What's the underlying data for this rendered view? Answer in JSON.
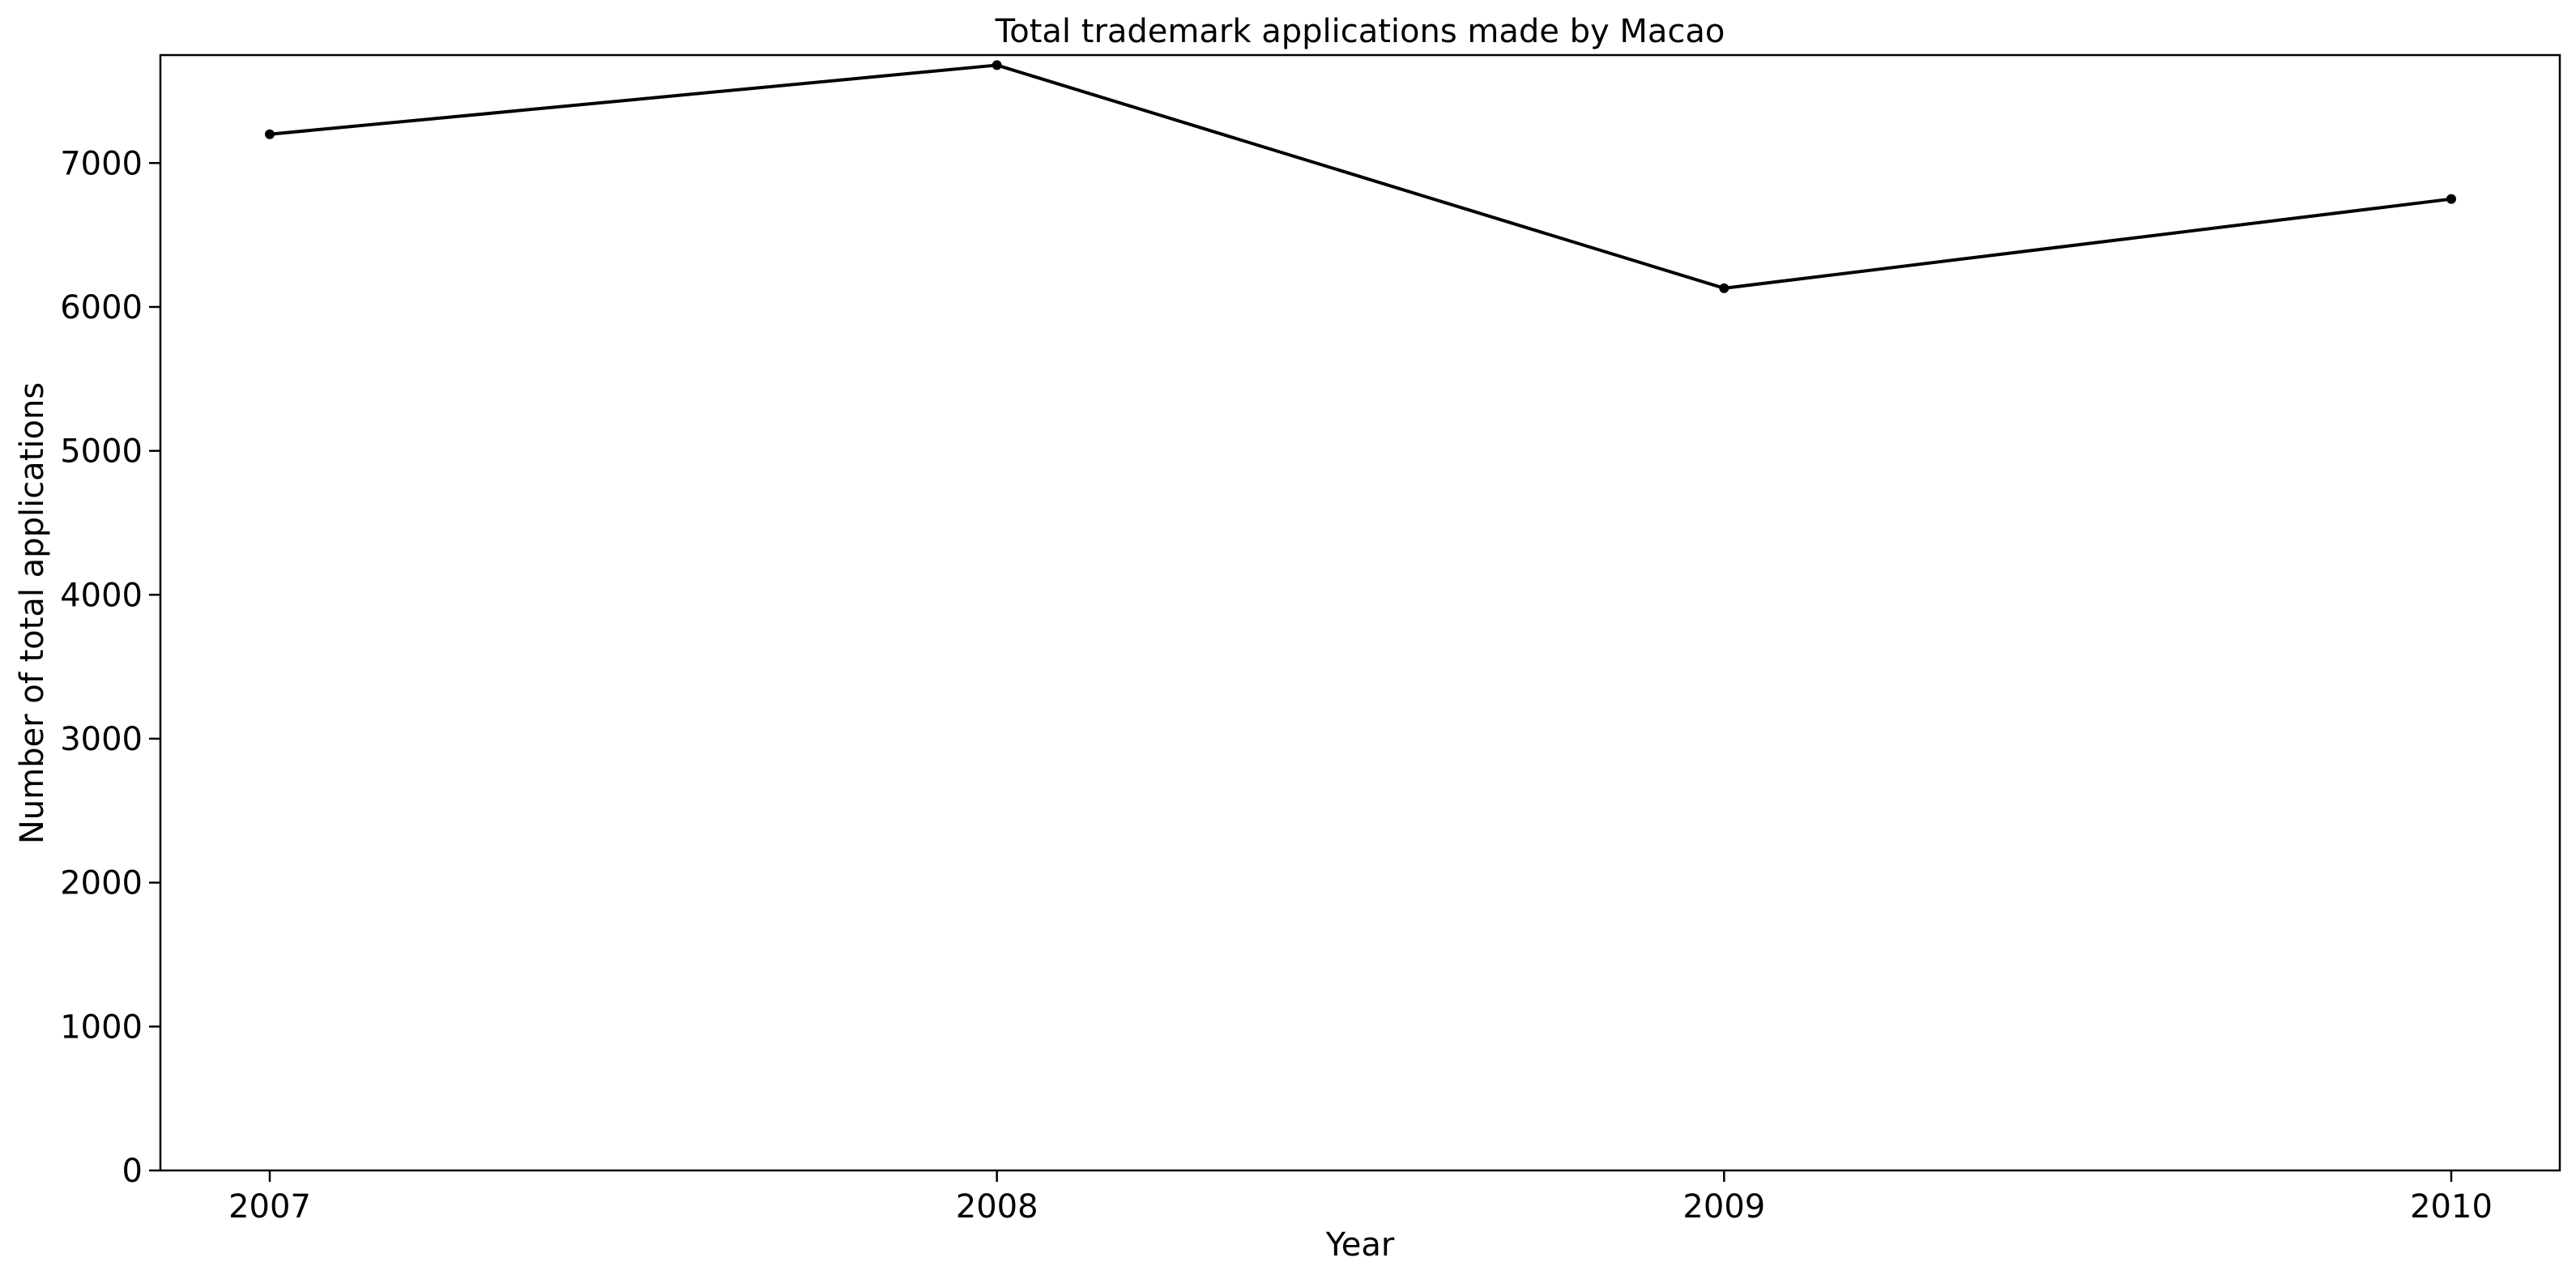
{
  "chart_data": {
    "type": "line",
    "title": "Total trademark applications made by Macao",
    "xlabel": "Year",
    "ylabel": "Number of total applications",
    "categories": [
      "2007",
      "2008",
      "2009",
      "2010"
    ],
    "series": [
      {
        "values": [
          7200,
          7680,
          6130,
          6750
        ],
        "color": "#000000",
        "marker": "circle"
      }
    ],
    "ylim": [
      0,
      7750
    ],
    "yticks": [
      0,
      1000,
      2000,
      3000,
      4000,
      5000,
      6000,
      7000
    ],
    "ytick_labels": [
      "0",
      "1000",
      "2000",
      "3000",
      "4000",
      "5000",
      "6000",
      "7000"
    ],
    "grid": false,
    "legend": "none"
  }
}
